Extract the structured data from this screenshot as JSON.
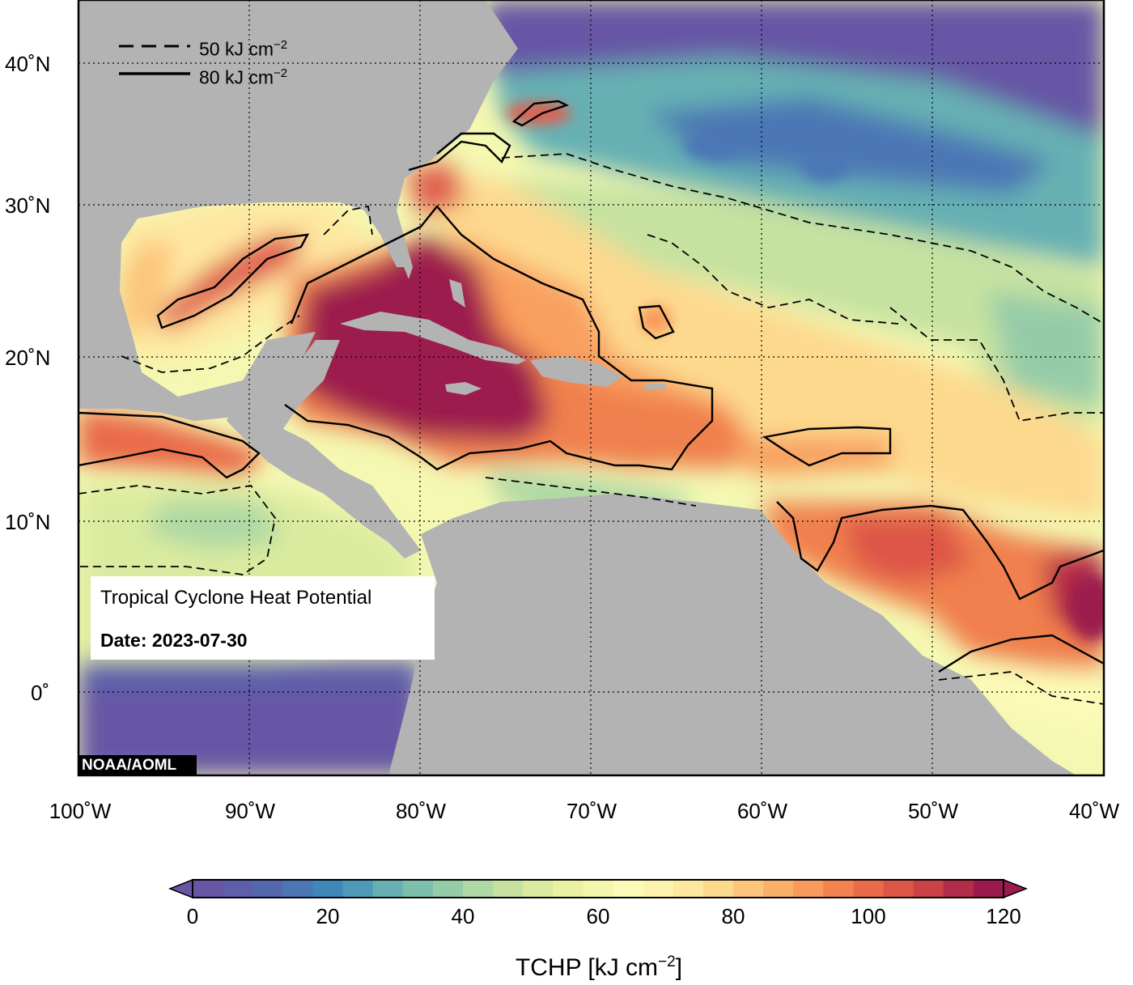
{
  "map": {
    "title": "Tropical Cyclone Heat Potential",
    "date_label": "Date: 2023-07-30",
    "credit": "NOAA/AOML",
    "legend": {
      "dashed": {
        "value": "50 kJ cm",
        "exp": "−2"
      },
      "solid": {
        "value": "80 kJ cm",
        "exp": "−2"
      }
    },
    "lat_labels": [
      "40˚N",
      "30˚N",
      "20˚N",
      "10˚N",
      "0˚"
    ],
    "lon_labels": [
      "100˚W",
      "90˚W",
      "80˚W",
      "70˚W",
      "60˚W",
      "50˚W",
      "40˚W"
    ],
    "extent": {
      "lon": [
        -100,
        -40
      ],
      "lat": [
        -5,
        45
      ]
    }
  },
  "colorbar": {
    "title": "TCHP [kJ cm",
    "title_exp": "−2",
    "title_close": "]",
    "ticks": [
      "0",
      "20",
      "40",
      "60",
      "80",
      "100",
      "120"
    ],
    "range": [
      0,
      120
    ],
    "colors": [
      "#6656a5",
      "#5e5eab",
      "#5468b0",
      "#4b77b5",
      "#3e87b8",
      "#4d9bb8",
      "#66b0b3",
      "#7dbfad",
      "#95cca8",
      "#aed8a4",
      "#c6e2a0",
      "#daeb9f",
      "#e8f2a1",
      "#f3f7ab",
      "#fbfbb7",
      "#fdf3ad",
      "#fee8a0",
      "#fdd98e",
      "#fdc57c",
      "#fbb06a",
      "#f89a5c",
      "#f3824f",
      "#ea6b48",
      "#dd5546",
      "#ca4146",
      "#b32c48",
      "#9c1a4d"
    ]
  }
}
